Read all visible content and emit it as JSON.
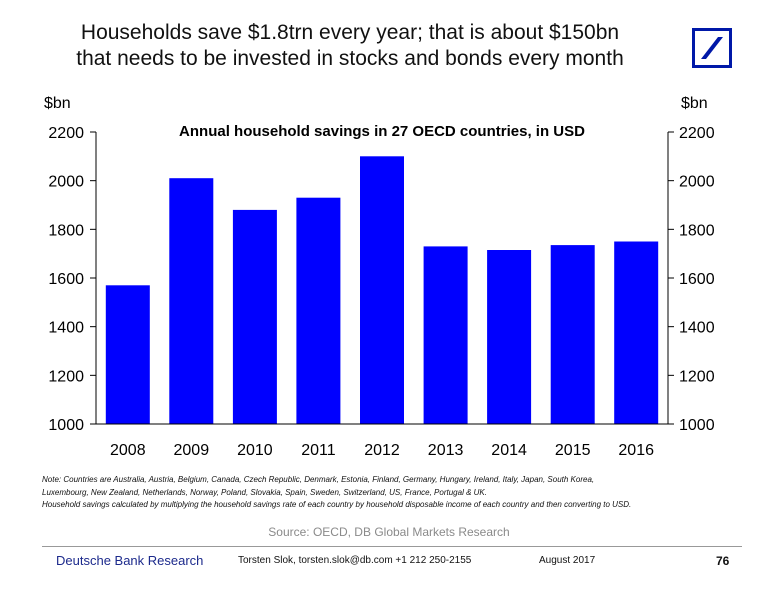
{
  "slide": {
    "headline_line1": "Households save $1.8trn every year; that is about $150bn",
    "headline_line2": "that needs to be invested in stocks and bonds every month",
    "note_line1": "Note: Countries are Australia, Austria, Belgium, Canada, Czech Republic, Denmark, Estonia, Finland, Germany, Hungary, Ireland, Italy, Japan, South Korea,",
    "note_line2": "Luxembourg, New Zealand, Netherlands, Norway, Poland, Slovakia, Spain, Sweden, Switzerland, US, France, Portugal & UK.",
    "note_line3": "Household savings calculated by multiplying the household savings rate of each country by household disposable income of each country and then converting to USD.",
    "source": "Source: OECD, DB Global Markets Research"
  },
  "footer": {
    "brand": "Deutsche Bank Research",
    "author": "Torsten Slok, torsten.slok@db.com  +1 212 250-2155",
    "date": "August  2017",
    "page": "76"
  },
  "colors": {
    "bar": "#0000ff",
    "brand_blue": "#1c2a8c",
    "logo_blue": "#0018a8"
  },
  "chart_data": {
    "type": "bar",
    "title": "Annual household savings in 27 OECD countries, in USD",
    "ylabel_left": "$bn",
    "ylabel_right": "$bn",
    "categories": [
      "2008",
      "2009",
      "2010",
      "2011",
      "2012",
      "2013",
      "2014",
      "2015",
      "2016"
    ],
    "values": [
      1570,
      2010,
      1880,
      1930,
      2100,
      1730,
      1715,
      1735,
      1750
    ],
    "ylim": [
      1000,
      2200
    ],
    "yticks": [
      1000,
      1200,
      1400,
      1600,
      1800,
      2000,
      2200
    ],
    "grid": false,
    "legend": "none"
  }
}
